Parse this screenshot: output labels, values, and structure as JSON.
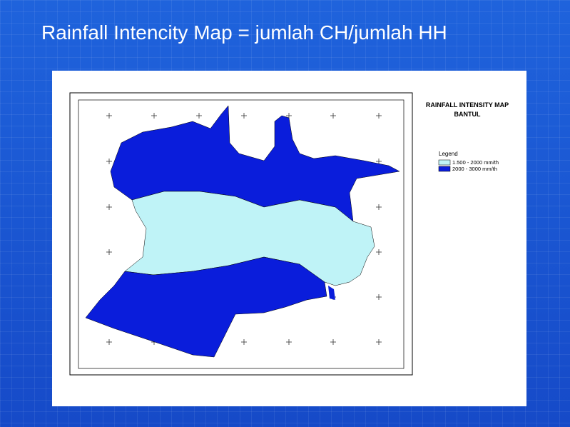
{
  "title": "Rainfall Intencity Map = jumlah CH/jumlah HH",
  "map": {
    "title": "RAINFALL INTENSITY MAP",
    "subtitle": "BANTUL",
    "legend": {
      "title": "Legend",
      "items": [
        "1.500 - 2000 mm/th",
        "2000 - 3000 mm/th"
      ]
    }
  }
}
